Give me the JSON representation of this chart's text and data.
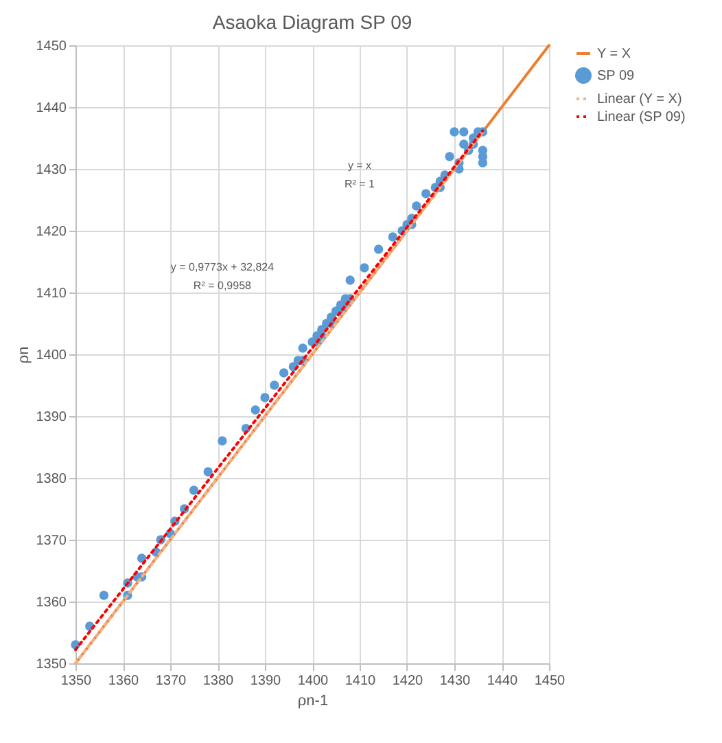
{
  "chart_data": {
    "type": "scatter",
    "title": "Asaoka Diagram SP 09",
    "xlabel": "ρn-1",
    "ylabel": "ρn",
    "xlim": [
      1350,
      1450
    ],
    "xticks": [
      1350,
      1360,
      1370,
      1380,
      1390,
      1400,
      1410,
      1420,
      1430,
      1440,
      1450
    ],
    "ylim": [
      1350,
      1450
    ],
    "yticks": [
      1350,
      1360,
      1370,
      1380,
      1390,
      1400,
      1410,
      1420,
      1430,
      1440,
      1450
    ],
    "grid": true,
    "legend": "right",
    "marker": "circle",
    "series": [
      {
        "name": "Y = X",
        "type": "line",
        "color": "#ed7d31",
        "marker": "none",
        "line_style": "solid",
        "x": [
          1350,
          1450
        ],
        "values": [
          1350,
          1450
        ]
      },
      {
        "name": "SP 09",
        "color": "#5b9bd5",
        "x": [
          1350,
          1353,
          1356,
          1361,
          1361,
          1363,
          1364,
          1364,
          1367,
          1368,
          1370,
          1371,
          1373,
          1375,
          1378,
          1381,
          1386,
          1388,
          1390,
          1392,
          1394,
          1396,
          1397,
          1398,
          1398,
          1400,
          1401,
          1401,
          1402,
          1402,
          1403,
          1404,
          1404,
          1405,
          1406,
          1406,
          1407,
          1408,
          1407,
          1408,
          1411,
          1414,
          1417,
          1419,
          1420,
          1421,
          1421,
          1422,
          1424,
          1426,
          1427,
          1427,
          1428,
          1429,
          1430,
          1431,
          1431,
          1432,
          1432,
          1433,
          1434,
          1434,
          1435,
          1436,
          1436,
          1436,
          1436
        ],
        "values": [
          1353,
          1356,
          1361,
          1361,
          1363,
          1364,
          1364,
          1367,
          1368,
          1370,
          1371,
          1373,
          1375,
          1378,
          1381,
          1386,
          1388,
          1391,
          1393,
          1395,
          1397,
          1398,
          1399,
          1399,
          1401,
          1402,
          1402,
          1403,
          1403,
          1404,
          1405,
          1405,
          1406,
          1407,
          1407,
          1408,
          1408,
          1409,
          1409,
          1412,
          1414,
          1417,
          1419,
          1420,
          1421,
          1421,
          1422,
          1424,
          1426,
          1427,
          1427,
          1428,
          1429,
          1432,
          1436,
          1431,
          1430,
          1436,
          1434,
          1433,
          1434,
          1435,
          1436,
          1436,
          1433,
          1432,
          1431
        ]
      },
      {
        "name": "Linear (Y = X)",
        "type": "line",
        "color": "#f4b183",
        "marker": "none",
        "line_style": "dotted",
        "x": [
          1350,
          1436
        ],
        "values": [
          1350,
          1436
        ]
      },
      {
        "name": "Linear (SP 09)",
        "type": "line",
        "color": "#ff0000",
        "marker": "none",
        "line_style": "dotted",
        "x": [
          1350,
          1436
        ],
        "values": [
          1352.2,
          1436.2
        ]
      }
    ],
    "annotations": [
      "y = x",
      "R² = 1",
      "y = 0,9773x + 32,824",
      "R² = 0,9958"
    ]
  }
}
